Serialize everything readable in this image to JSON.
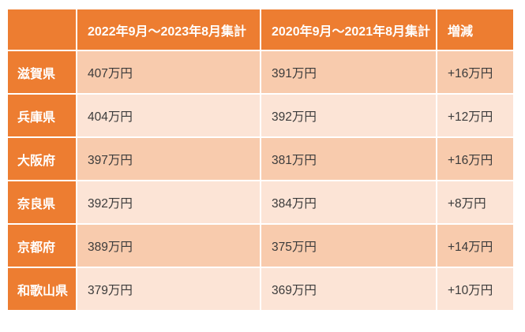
{
  "table": {
    "header": {
      "blank": "",
      "period1": "2022年9月～2023年8月集計",
      "period2": "2020年9月～2021年8月集計",
      "change": "増減"
    },
    "rows": [
      {
        "prefecture": "滋賀県",
        "period1_value": "407万円",
        "period2_value": "391万円",
        "change_value": "+16万円"
      },
      {
        "prefecture": "兵庫県",
        "period1_value": "404万円",
        "period2_value": "392万円",
        "change_value": "+12万円"
      },
      {
        "prefecture": "大阪府",
        "period1_value": "397万円",
        "period2_value": "381万円",
        "change_value": "+16万円"
      },
      {
        "prefecture": "奈良県",
        "period1_value": "392万円",
        "period2_value": "384万円",
        "change_value": "+8万円"
      },
      {
        "prefecture": "京都府",
        "period1_value": "389万円",
        "period2_value": "375万円",
        "change_value": "+14万円"
      },
      {
        "prefecture": "和歌山県",
        "period1_value": "379万円",
        "period2_value": "369万円",
        "change_value": "+10万円"
      }
    ],
    "colors": {
      "header_bg": "#ED7D31",
      "row_label_bg": "#ED7D31",
      "row_odd_bg": "#F8CBAD",
      "row_even_bg": "#FCE4D6",
      "header_text": "#FFFFFF",
      "cell_text": "#3B3B3B",
      "grid_line": "#FFFFFF"
    }
  },
  "chart_data": {
    "type": "table",
    "columns": [
      "",
      "2022年9月～2023年8月集計",
      "2020年9月～2021年8月集計",
      "増減"
    ],
    "rows": [
      [
        "滋賀県",
        "407万円",
        "391万円",
        "+16万円"
      ],
      [
        "兵庫県",
        "404万円",
        "392万円",
        "+12万円"
      ],
      [
        "大阪府",
        "397万円",
        "381万円",
        "+16万円"
      ],
      [
        "奈良県",
        "392万円",
        "384万円",
        "+8万円"
      ],
      [
        "京都府",
        "389万円",
        "375万円",
        "+14万円"
      ],
      [
        "和歌山県",
        "379万円",
        "369万円",
        "+10万円"
      ]
    ],
    "values_in_10k_yen": {
      "period1": [
        407,
        404,
        397,
        392,
        389,
        379
      ],
      "period2": [
        391,
        392,
        381,
        384,
        375,
        369
      ],
      "change": [
        16,
        12,
        16,
        8,
        14,
        10
      ]
    },
    "title": "",
    "layout": "header row orange, prefecture column orange, alternating peach body rows"
  }
}
